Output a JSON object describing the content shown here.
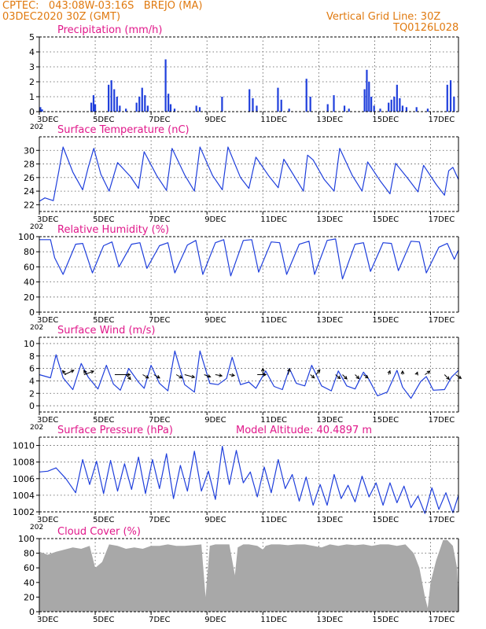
{
  "header": {
    "line1": "CPTEC:   043:08W-03:16S   BREJO (MA)",
    "line2": "03DEC2020 30Z (GMT)",
    "grid_note": "Vertical Grid Line: 30Z",
    "code": "TQ0126L028"
  },
  "colors": {
    "header": "#e07a10",
    "title": "#e0188a",
    "line": "#1f3fdc",
    "bar": "#1f3fdc",
    "cloud": "#a8a8a8",
    "grid": "#555555",
    "arrow": "#000000"
  },
  "x_axis": {
    "start_day": 3,
    "end_day": 18,
    "tick_days": [
      3,
      5,
      7,
      9,
      11,
      13,
      15,
      17
    ],
    "tick_labels": [
      "3DEC",
      "5DEC",
      "7DEC",
      "9DEC",
      "11DEC",
      "13DEC",
      "15DEC",
      "17DEC"
    ],
    "clipped_year_label": "202"
  },
  "chart_data": [
    {
      "type": "bar",
      "title": "Precipitation (mm/h)",
      "ylim": [
        0,
        5
      ],
      "yticks": [
        0,
        1,
        2,
        3,
        4,
        5
      ],
      "grid": "dotted",
      "x": [
        3.04,
        3.1,
        4.86,
        4.94,
        5.0,
        5.48,
        5.58,
        5.68,
        5.78,
        5.88,
        6.1,
        6.48,
        6.58,
        6.68,
        6.78,
        6.88,
        7.52,
        7.62,
        7.7,
        7.84,
        8.62,
        8.74,
        9.54,
        10.52,
        10.64,
        10.78,
        11.54,
        11.66,
        11.94,
        12.56,
        12.7,
        13.32,
        13.54,
        13.92,
        14.08,
        14.64,
        14.72,
        14.8,
        14.88,
        14.98,
        15.2,
        15.5,
        15.6,
        15.7,
        15.8,
        15.9,
        16.0,
        16.14,
        16.5,
        16.9,
        17.6,
        17.72,
        17.84
      ],
      "values": [
        0.3,
        0.15,
        0.6,
        1.1,
        0.5,
        1.8,
        2.1,
        1.5,
        1.0,
        0.4,
        0.2,
        0.6,
        1.0,
        1.6,
        1.1,
        0.4,
        3.5,
        1.2,
        0.5,
        0.2,
        0.4,
        0.3,
        1.0,
        1.5,
        0.9,
        0.4,
        1.6,
        0.8,
        0.2,
        2.2,
        1.0,
        0.5,
        1.1,
        0.4,
        0.2,
        1.5,
        2.8,
        2.0,
        1.0,
        0.4,
        0.2,
        0.6,
        0.8,
        1.0,
        1.8,
        0.9,
        0.4,
        0.3,
        0.3,
        0.2,
        1.8,
        2.1,
        1.0
      ]
    },
    {
      "type": "line",
      "title": "Surface Temperature (nC)",
      "ylim": [
        21,
        32
      ],
      "yticks": [
        22,
        24,
        26,
        28,
        30
      ],
      "grid": "dotted",
      "x": [
        3.0,
        3.2,
        3.5,
        3.7,
        3.85,
        4.2,
        4.55,
        4.75,
        4.95,
        5.2,
        5.5,
        5.8,
        6.25,
        6.55,
        6.75,
        7.2,
        7.55,
        7.75,
        8.2,
        8.55,
        8.75,
        9.2,
        9.55,
        9.75,
        10.2,
        10.5,
        10.75,
        11.2,
        11.55,
        11.75,
        12.2,
        12.45,
        12.6,
        12.8,
        13.2,
        13.55,
        13.75,
        14.2,
        14.55,
        14.75,
        15.2,
        15.55,
        15.75,
        16.2,
        16.55,
        16.75,
        17.2,
        17.5,
        17.65,
        17.8,
        18.0
      ],
      "series": [
        {
          "values": [
            22.5,
            23.0,
            22.6,
            27.0,
            30.5,
            26.8,
            24.2,
            27.5,
            30.3,
            26.5,
            24.0,
            28.2,
            26.2,
            24.4,
            29.8,
            26.3,
            24.1,
            30.3,
            26.4,
            24.0,
            30.5,
            26.3,
            24.2,
            30.5,
            26.0,
            24.4,
            29.0,
            26.3,
            24.5,
            28.7,
            25.7,
            24.0,
            29.3,
            28.6,
            25.7,
            24.0,
            30.3,
            26.3,
            24.0,
            28.3,
            25.5,
            23.6,
            28.1,
            25.8,
            23.9,
            27.8,
            25.0,
            23.4,
            27.0,
            27.5,
            25.7
          ]
        }
      ]
    },
    {
      "type": "line",
      "title": "Relative Humidity (%)",
      "ylim": [
        0,
        100
      ],
      "yticks": [
        0,
        20,
        40,
        60,
        80,
        100
      ],
      "grid": "dotted",
      "x": [
        3.0,
        3.4,
        3.55,
        3.85,
        4.3,
        4.55,
        4.9,
        5.3,
        5.6,
        5.85,
        6.3,
        6.6,
        6.85,
        7.3,
        7.6,
        7.85,
        8.3,
        8.6,
        8.85,
        9.3,
        9.6,
        9.85,
        10.3,
        10.6,
        10.85,
        11.3,
        11.6,
        11.85,
        12.3,
        12.65,
        12.85,
        13.3,
        13.6,
        13.85,
        14.3,
        14.6,
        14.85,
        15.3,
        15.6,
        15.85,
        16.3,
        16.6,
        16.85,
        17.3,
        17.6,
        17.85,
        18.0
      ],
      "series": [
        {
          "values": [
            96,
            96,
            72,
            50,
            90,
            91,
            52,
            88,
            93,
            60,
            90,
            92,
            58,
            88,
            92,
            52,
            89,
            95,
            50,
            92,
            96,
            48,
            95,
            96,
            53,
            93,
            92,
            50,
            90,
            94,
            50,
            95,
            97,
            44,
            90,
            92,
            54,
            92,
            91,
            55,
            94,
            93,
            52,
            86,
            91,
            70,
            82
          ]
        }
      ]
    },
    {
      "type": "line",
      "title": "Surface Wind (m/s)",
      "ylim": [
        -1,
        11
      ],
      "yticks": [
        0,
        2,
        4,
        6,
        8,
        10
      ],
      "grid": "dotted",
      "x": [
        3.0,
        3.4,
        3.6,
        3.85,
        4.2,
        4.5,
        4.75,
        5.1,
        5.4,
        5.65,
        5.9,
        6.2,
        6.55,
        6.75,
        7.0,
        7.3,
        7.6,
        7.85,
        8.2,
        8.55,
        8.75,
        9.1,
        9.4,
        9.7,
        9.9,
        10.2,
        10.5,
        10.75,
        11.1,
        11.4,
        11.7,
        11.95,
        12.2,
        12.5,
        12.75,
        13.1,
        13.45,
        13.7,
        14.0,
        14.3,
        14.6,
        14.8,
        15.1,
        15.45,
        15.8,
        16.0,
        16.3,
        16.65,
        16.85,
        17.1,
        17.5,
        17.75,
        18.0
      ],
      "series": [
        {
          "values": [
            5,
            4.5,
            8.2,
            4.5,
            2.6,
            6.8,
            4.6,
            2.7,
            6.5,
            3.5,
            2.5,
            6.0,
            3.8,
            2.8,
            6.5,
            3.6,
            2.4,
            8.8,
            3.4,
            2.2,
            8.8,
            3.6,
            3.4,
            4.4,
            7.8,
            3.4,
            3.8,
            2.8,
            5.6,
            3.1,
            2.6,
            6.0,
            3.6,
            3.2,
            6.5,
            3.2,
            2.4,
            5.6,
            3.2,
            2.7,
            5.4,
            4.2,
            1.6,
            2.2,
            5.7,
            3.0,
            1.2,
            3.9,
            4.7,
            2.5,
            2.6,
            4.6,
            5.7
          ]
        }
      ],
      "barbs": [
        {
          "day": 3.9,
          "dir_deg": 115,
          "len": 2
        },
        {
          "day": 3.95,
          "dir_deg": 220,
          "len": 1
        },
        {
          "day": 4.6,
          "dir_deg": 110,
          "len": 2
        },
        {
          "day": 4.7,
          "dir_deg": 215,
          "len": 1
        },
        {
          "day": 5.7,
          "dir_deg": 90,
          "len": 3
        },
        {
          "day": 6.1,
          "dir_deg": 45,
          "len": 1.3
        },
        {
          "day": 6.7,
          "dir_deg": 60,
          "len": 1.3
        },
        {
          "day": 7.1,
          "dir_deg": 60,
          "len": 1.3
        },
        {
          "day": 7.9,
          "dir_deg": 60,
          "len": 1.3
        },
        {
          "day": 8.2,
          "dir_deg": 75,
          "len": 2
        },
        {
          "day": 8.9,
          "dir_deg": 70,
          "len": 1.3
        },
        {
          "day": 9.3,
          "dir_deg": 80,
          "len": 1.3
        },
        {
          "day": 9.8,
          "dir_deg": 80,
          "len": 1
        },
        {
          "day": 10.8,
          "dir_deg": 90,
          "len": 1.7
        },
        {
          "day": 11.0,
          "dir_deg": 180,
          "len": 1.2
        },
        {
          "day": 11.9,
          "dir_deg": 165,
          "len": 1.2
        },
        {
          "day": 12.7,
          "dir_deg": 50,
          "len": 1
        },
        {
          "day": 12.9,
          "dir_deg": 140,
          "len": 1.2
        },
        {
          "day": 13.6,
          "dir_deg": 50,
          "len": 1.2
        },
        {
          "day": 13.85,
          "dir_deg": 45,
          "len": 1.2
        },
        {
          "day": 14.3,
          "dir_deg": 45,
          "len": 1.1
        },
        {
          "day": 14.6,
          "dir_deg": 55,
          "len": 1.1
        },
        {
          "day": 15.5,
          "dir_deg": 160,
          "len": 0.8
        },
        {
          "day": 16.0,
          "dir_deg": 180,
          "len": 0.7
        },
        {
          "day": 16.5,
          "dir_deg": 160,
          "len": 0.5
        },
        {
          "day": 16.8,
          "dir_deg": 125,
          "len": 1.2
        },
        {
          "day": 17.5,
          "dir_deg": 45,
          "len": 1.3
        },
        {
          "day": 17.9,
          "dir_deg": 55,
          "len": 1.3
        }
      ]
    },
    {
      "type": "line",
      "title": "Surface Pressure (hPa)",
      "ylim": [
        1002,
        1011
      ],
      "yticks": [
        1002,
        1004,
        1006,
        1008,
        1010
      ],
      "grid": "dotted",
      "x": [
        3.0,
        3.3,
        3.6,
        3.95,
        4.3,
        4.55,
        4.8,
        5.05,
        5.3,
        5.55,
        5.8,
        6.05,
        6.3,
        6.55,
        6.8,
        7.05,
        7.3,
        7.55,
        7.8,
        8.05,
        8.3,
        8.55,
        8.8,
        9.05,
        9.3,
        9.55,
        9.8,
        10.05,
        10.3,
        10.55,
        10.8,
        11.05,
        11.3,
        11.55,
        11.8,
        12.05,
        12.3,
        12.55,
        12.8,
        13.05,
        13.3,
        13.55,
        13.8,
        14.05,
        14.3,
        14.55,
        14.8,
        15.05,
        15.3,
        15.55,
        15.8,
        16.05,
        16.3,
        16.55,
        16.8,
        17.05,
        17.3,
        17.55,
        17.8,
        18.0
      ],
      "series": [
        {
          "values": [
            1006.8,
            1006.9,
            1007.3,
            1006.0,
            1004.3,
            1008.3,
            1005.3,
            1008.1,
            1004.2,
            1008.2,
            1004.5,
            1007.8,
            1004.7,
            1008.6,
            1004.2,
            1008.3,
            1004.8,
            1009.0,
            1003.6,
            1007.6,
            1004.5,
            1009.3,
            1004.5,
            1006.9,
            1003.5,
            1009.9,
            1005.3,
            1009.4,
            1005.5,
            1006.8,
            1003.8,
            1007.4,
            1004.3,
            1008.3,
            1004.8,
            1006.5,
            1003.3,
            1006.2,
            1002.8,
            1005.3,
            1002.8,
            1006.5,
            1003.6,
            1005.2,
            1003.2,
            1006.3,
            1003.8,
            1005.5,
            1002.8,
            1005.5,
            1003.1,
            1005.1,
            1002.5,
            1003.9,
            1001.8,
            1004.9,
            1002.3,
            1004.3,
            1001.9,
            1004.0
          ]
        }
      ]
    },
    {
      "type": "area",
      "title": "Cloud Cover (%)",
      "ylim": [
        0,
        100
      ],
      "yticks": [
        0,
        20,
        40,
        60,
        80,
        100
      ],
      "grid": "dotted",
      "x": [
        3.0,
        3.3,
        3.6,
        3.9,
        4.2,
        4.5,
        4.8,
        5.0,
        5.25,
        5.5,
        5.8,
        6.1,
        6.4,
        6.7,
        7.0,
        7.3,
        7.6,
        7.9,
        8.2,
        8.5,
        8.8,
        8.95,
        9.1,
        9.3,
        9.5,
        9.8,
        10.0,
        10.1,
        10.3,
        10.5,
        10.8,
        11.0,
        11.1,
        11.3,
        11.6,
        11.9,
        12.2,
        12.5,
        12.8,
        13.1,
        13.4,
        13.7,
        14.0,
        14.3,
        14.6,
        14.9,
        15.2,
        15.5,
        15.8,
        16.1,
        16.4,
        16.6,
        16.8,
        16.9,
        17.0,
        17.2,
        17.45,
        17.6,
        17.8,
        17.95,
        18.0
      ],
      "series": [
        {
          "values": [
            82,
            78,
            82,
            85,
            88,
            86,
            90,
            60,
            68,
            92,
            90,
            86,
            88,
            86,
            90,
            90,
            92,
            90,
            90,
            91,
            92,
            20,
            90,
            92,
            92,
            92,
            50,
            88,
            92,
            92,
            90,
            85,
            90,
            92,
            92,
            91,
            92,
            92,
            90,
            88,
            92,
            90,
            92,
            91,
            92,
            90,
            92,
            92,
            90,
            92,
            80,
            60,
            20,
            5,
            40,
            70,
            98,
            98,
            90,
            60,
            20
          ]
        }
      ]
    }
  ],
  "overlay_label": "Model Altitude: 40.4897 m"
}
